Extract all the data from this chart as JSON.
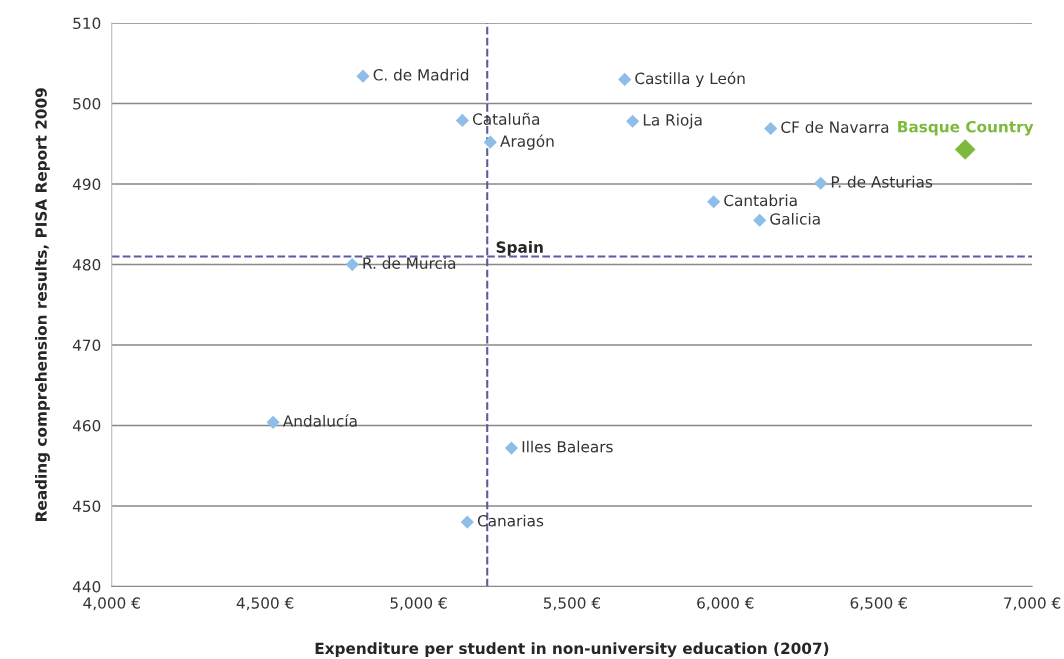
{
  "chart_data": {
    "type": "scatter",
    "xlabel": "Expenditure per student in non-university education (2007)",
    "ylabel": "Reading comprehension results, PISA Report 2009",
    "xlim": [
      4000,
      7000
    ],
    "ylim": [
      440,
      510
    ],
    "xticks": [
      {
        "value": 4000,
        "label": "4,000 €"
      },
      {
        "value": 4500,
        "label": "4,500 €"
      },
      {
        "value": 5000,
        "label": "5,000 €"
      },
      {
        "value": 5500,
        "label": "5,500 €"
      },
      {
        "value": 6000,
        "label": "6,000 €"
      },
      {
        "value": 6500,
        "label": "6,500 €"
      },
      {
        "value": 7000,
        "label": "7,000 €"
      }
    ],
    "yticks": [
      440,
      450,
      460,
      470,
      480,
      490,
      500,
      510
    ],
    "grid": "y",
    "marker": "diamond",
    "series": [
      {
        "color": "#8ebde8",
        "x": [
          4819,
          5672,
          5143,
          5698,
          5234,
          6148,
          6311,
          5962,
          6112,
          4784,
          4526,
          5303,
          5159
        ],
        "values": [
          503.4,
          503.0,
          497.9,
          497.8,
          495.2,
          496.9,
          490.1,
          487.8,
          485.5,
          480.0,
          460.4,
          457.2,
          448.0
        ]
      },
      {
        "name": "Basque Country",
        "color": "#7dba3c",
        "x": [
          6782
        ],
        "values": [
          494.3
        ]
      }
    ],
    "annotations": [
      {
        "text": "C. de Madrid",
        "x": 4819,
        "y": 503.4
      },
      {
        "text": "Castilla y León",
        "x": 5672,
        "y": 503.0
      },
      {
        "text": "Cataluña",
        "x": 5143,
        "y": 497.9
      },
      {
        "text": "La Rioja",
        "x": 5698,
        "y": 497.8
      },
      {
        "text": "Aragón",
        "x": 5234,
        "y": 495.2
      },
      {
        "text": "CF de Navarra",
        "x": 6148,
        "y": 496.9
      },
      {
        "text": "P. de Asturias",
        "x": 6311,
        "y": 490.1
      },
      {
        "text": "Cantabria",
        "x": 5962,
        "y": 487.8
      },
      {
        "text": "Galicia",
        "x": 6112,
        "y": 485.5
      },
      {
        "text": "R. de Murcia",
        "x": 4784,
        "y": 480.0
      },
      {
        "text": "Andalucía",
        "x": 4526,
        "y": 460.4
      },
      {
        "text": "Illes Balears",
        "x": 5303,
        "y": 457.2
      },
      {
        "text": "Canarias",
        "x": 5159,
        "y": 448.0
      }
    ],
    "ref_lines": [
      {
        "axis": "x",
        "value": 5224,
        "label": "Spain",
        "color": "#5b5b9e",
        "line_style": "dashed"
      },
      {
        "axis": "y",
        "value": 481,
        "color": "#5b5b9e",
        "line_style": "dashed"
      }
    ]
  }
}
